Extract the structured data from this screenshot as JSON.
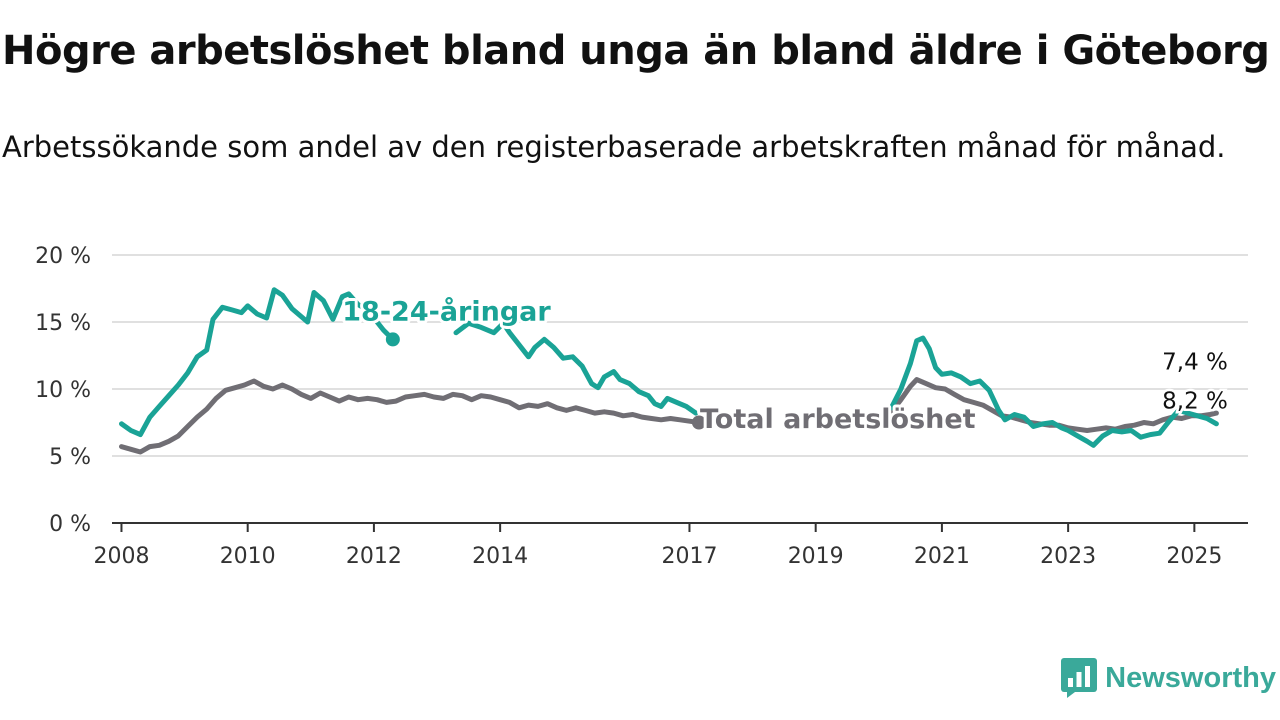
{
  "title": "Högre arbetslöshet bland unga än bland äldre i Göteborg",
  "subtitle": "Arbetssökande som andel av den registerbaserade arbetskraften månad för månad.",
  "brand": {
    "name": "Newsworthy",
    "color": "#3aa99a",
    "icon": "newsworthy-logo-icon"
  },
  "chart_data": {
    "type": "line",
    "x_unit": "year",
    "xlim": [
      2007.85,
      2025.85
    ],
    "ylim": [
      0,
      20
    ],
    "y_ticks": [
      0,
      5,
      10,
      15,
      20
    ],
    "y_tick_labels": [
      "0 %",
      "5 %",
      "10 %",
      "15 %",
      "20 %"
    ],
    "x_ticks": [
      2008,
      2010,
      2012,
      2014,
      2017,
      2019,
      2021,
      2023,
      2025
    ],
    "x_tick_labels": [
      "2008",
      "2010",
      "2012",
      "2014",
      "2017",
      "2019",
      "2021",
      "2023",
      "2025"
    ],
    "grid": true,
    "series": [
      {
        "name": "18-24-åringar",
        "color": "#1aa396",
        "end_label": "7,4 %",
        "points": [
          [
            2008.0,
            7.4
          ],
          [
            2008.15,
            6.9
          ],
          [
            2008.3,
            6.6
          ],
          [
            2008.45,
            7.9
          ],
          [
            2008.6,
            8.7
          ],
          [
            2008.75,
            9.5
          ],
          [
            2008.9,
            10.3
          ],
          [
            2009.05,
            11.2
          ],
          [
            2009.2,
            12.4
          ],
          [
            2009.35,
            12.9
          ],
          [
            2009.45,
            15.2
          ],
          [
            2009.6,
            16.1
          ],
          [
            2009.75,
            15.9
          ],
          [
            2009.9,
            15.7
          ],
          [
            2010.0,
            16.2
          ],
          [
            2010.15,
            15.6
          ],
          [
            2010.3,
            15.3
          ],
          [
            2010.42,
            17.4
          ],
          [
            2010.55,
            17.0
          ],
          [
            2010.7,
            16.0
          ],
          [
            2010.85,
            15.4
          ],
          [
            2010.95,
            15.0
          ],
          [
            2011.05,
            17.2
          ],
          [
            2011.2,
            16.6
          ],
          [
            2011.35,
            15.2
          ],
          [
            2011.5,
            16.9
          ],
          [
            2011.6,
            17.1
          ],
          [
            2011.75,
            16.3
          ],
          [
            2011.9,
            15.9
          ],
          [
            2012.0,
            15.3
          ],
          [
            2012.15,
            14.4
          ],
          [
            2012.3,
            13.7
          ]
        ]
      },
      {
        "name": "18-24-åringar",
        "color": "#1aa396",
        "points": [
          [
            2013.3,
            14.2
          ],
          [
            2013.5,
            14.9
          ],
          [
            2013.7,
            14.6
          ],
          [
            2013.9,
            14.2
          ],
          [
            2014.05,
            14.9
          ],
          [
            2014.15,
            14.2
          ],
          [
            2014.3,
            13.3
          ],
          [
            2014.45,
            12.4
          ],
          [
            2014.55,
            13.1
          ],
          [
            2014.7,
            13.7
          ],
          [
            2014.85,
            13.1
          ],
          [
            2015.0,
            12.3
          ],
          [
            2015.15,
            12.4
          ],
          [
            2015.3,
            11.7
          ],
          [
            2015.45,
            10.4
          ],
          [
            2015.55,
            10.1
          ],
          [
            2015.65,
            10.9
          ],
          [
            2015.8,
            11.3
          ],
          [
            2015.9,
            10.7
          ],
          [
            2016.05,
            10.4
          ],
          [
            2016.2,
            9.8
          ],
          [
            2016.35,
            9.5
          ],
          [
            2016.45,
            8.9
          ],
          [
            2016.55,
            8.7
          ],
          [
            2016.65,
            9.3
          ],
          [
            2016.8,
            9.0
          ],
          [
            2016.95,
            8.7
          ],
          [
            2017.1,
            8.2
          ]
        ]
      },
      {
        "name": "18-24-åringar",
        "color": "#1aa396",
        "points": [
          [
            2020.2,
            8.6
          ],
          [
            2020.35,
            10.0
          ],
          [
            2020.5,
            11.9
          ],
          [
            2020.6,
            13.6
          ],
          [
            2020.7,
            13.8
          ],
          [
            2020.8,
            13.0
          ],
          [
            2020.9,
            11.6
          ],
          [
            2021.0,
            11.1
          ],
          [
            2021.15,
            11.2
          ],
          [
            2021.3,
            10.9
          ],
          [
            2021.45,
            10.4
          ],
          [
            2021.6,
            10.6
          ],
          [
            2021.75,
            9.9
          ],
          [
            2021.9,
            8.4
          ],
          [
            2022.0,
            7.7
          ],
          [
            2022.15,
            8.1
          ],
          [
            2022.3,
            7.9
          ],
          [
            2022.45,
            7.2
          ],
          [
            2022.6,
            7.4
          ],
          [
            2022.75,
            7.5
          ],
          [
            2022.9,
            7.1
          ],
          [
            2023.0,
            6.9
          ],
          [
            2023.15,
            6.5
          ],
          [
            2023.3,
            6.1
          ],
          [
            2023.4,
            5.8
          ],
          [
            2023.55,
            6.5
          ],
          [
            2023.7,
            6.9
          ],
          [
            2023.85,
            6.8
          ],
          [
            2024.0,
            6.9
          ],
          [
            2024.15,
            6.4
          ],
          [
            2024.3,
            6.6
          ],
          [
            2024.45,
            6.7
          ],
          [
            2024.6,
            7.6
          ],
          [
            2024.75,
            8.4
          ],
          [
            2024.9,
            8.2
          ],
          [
            2025.05,
            8.0
          ],
          [
            2025.2,
            7.8
          ],
          [
            2025.35,
            7.4
          ]
        ]
      },
      {
        "name": "Total arbetslöshet",
        "color": "#706e74",
        "end_label": "8,2 %",
        "points": [
          [
            2008.0,
            5.7
          ],
          [
            2008.15,
            5.5
          ],
          [
            2008.3,
            5.3
          ],
          [
            2008.45,
            5.7
          ],
          [
            2008.6,
            5.8
          ],
          [
            2008.75,
            6.1
          ],
          [
            2008.9,
            6.5
          ],
          [
            2009.05,
            7.2
          ],
          [
            2009.2,
            7.9
          ],
          [
            2009.35,
            8.5
          ],
          [
            2009.5,
            9.3
          ],
          [
            2009.65,
            9.9
          ],
          [
            2009.8,
            10.1
          ],
          [
            2009.95,
            10.3
          ],
          [
            2010.1,
            10.6
          ],
          [
            2010.25,
            10.2
          ],
          [
            2010.4,
            10.0
          ],
          [
            2010.55,
            10.3
          ],
          [
            2010.7,
            10.0
          ],
          [
            2010.85,
            9.6
          ],
          [
            2011.0,
            9.3
          ],
          [
            2011.15,
            9.7
          ],
          [
            2011.3,
            9.4
          ],
          [
            2011.45,
            9.1
          ],
          [
            2011.6,
            9.4
          ],
          [
            2011.75,
            9.2
          ],
          [
            2011.9,
            9.3
          ],
          [
            2012.05,
            9.2
          ],
          [
            2012.2,
            9.0
          ],
          [
            2012.35,
            9.1
          ],
          [
            2012.5,
            9.4
          ],
          [
            2012.65,
            9.5
          ],
          [
            2012.8,
            9.6
          ],
          [
            2012.95,
            9.4
          ],
          [
            2013.1,
            9.3
          ],
          [
            2013.25,
            9.6
          ],
          [
            2013.4,
            9.5
          ],
          [
            2013.55,
            9.2
          ],
          [
            2013.7,
            9.5
          ],
          [
            2013.85,
            9.4
          ],
          [
            2014.0,
            9.2
          ],
          [
            2014.15,
            9.0
          ],
          [
            2014.3,
            8.6
          ],
          [
            2014.45,
            8.8
          ],
          [
            2014.6,
            8.7
          ],
          [
            2014.75,
            8.9
          ],
          [
            2014.9,
            8.6
          ],
          [
            2015.05,
            8.4
          ],
          [
            2015.2,
            8.6
          ],
          [
            2015.35,
            8.4
          ],
          [
            2015.5,
            8.2
          ],
          [
            2015.65,
            8.3
          ],
          [
            2015.8,
            8.2
          ],
          [
            2015.95,
            8.0
          ],
          [
            2016.1,
            8.1
          ],
          [
            2016.25,
            7.9
          ],
          [
            2016.4,
            7.8
          ],
          [
            2016.55,
            7.7
          ],
          [
            2016.7,
            7.8
          ],
          [
            2016.85,
            7.7
          ],
          [
            2017.0,
            7.6
          ],
          [
            2017.15,
            7.5
          ]
        ]
      },
      {
        "name": "Total arbetslöshet",
        "color": "#706e74",
        "points": [
          [
            2020.2,
            8.3
          ],
          [
            2020.35,
            9.2
          ],
          [
            2020.5,
            10.2
          ],
          [
            2020.6,
            10.7
          ],
          [
            2020.75,
            10.4
          ],
          [
            2020.9,
            10.1
          ],
          [
            2021.05,
            10.0
          ],
          [
            2021.2,
            9.6
          ],
          [
            2021.35,
            9.2
          ],
          [
            2021.5,
            9.0
          ],
          [
            2021.65,
            8.8
          ],
          [
            2021.8,
            8.4
          ],
          [
            2021.95,
            8.0
          ],
          [
            2022.1,
            7.9
          ],
          [
            2022.25,
            7.7
          ],
          [
            2022.4,
            7.5
          ],
          [
            2022.55,
            7.4
          ],
          [
            2022.7,
            7.3
          ],
          [
            2022.85,
            7.3
          ],
          [
            2023.0,
            7.1
          ],
          [
            2023.15,
            7.0
          ],
          [
            2023.3,
            6.9
          ],
          [
            2023.45,
            7.0
          ],
          [
            2023.6,
            7.1
          ],
          [
            2023.75,
            7.0
          ],
          [
            2023.9,
            7.2
          ],
          [
            2024.05,
            7.3
          ],
          [
            2024.2,
            7.5
          ],
          [
            2024.35,
            7.4
          ],
          [
            2024.5,
            7.7
          ],
          [
            2024.65,
            7.9
          ],
          [
            2024.8,
            7.8
          ],
          [
            2024.95,
            8.0
          ],
          [
            2025.1,
            8.0
          ],
          [
            2025.25,
            8.1
          ],
          [
            2025.35,
            8.2
          ]
        ]
      }
    ],
    "annotations": [
      {
        "text": "18-24-åringar",
        "x": 2013.15,
        "y": 15.1,
        "series_color": "#1aa396"
      },
      {
        "text": "Total arbetslöshet",
        "x": 2019.35,
        "y": 7.1,
        "series_color": "#706e74"
      }
    ]
  }
}
